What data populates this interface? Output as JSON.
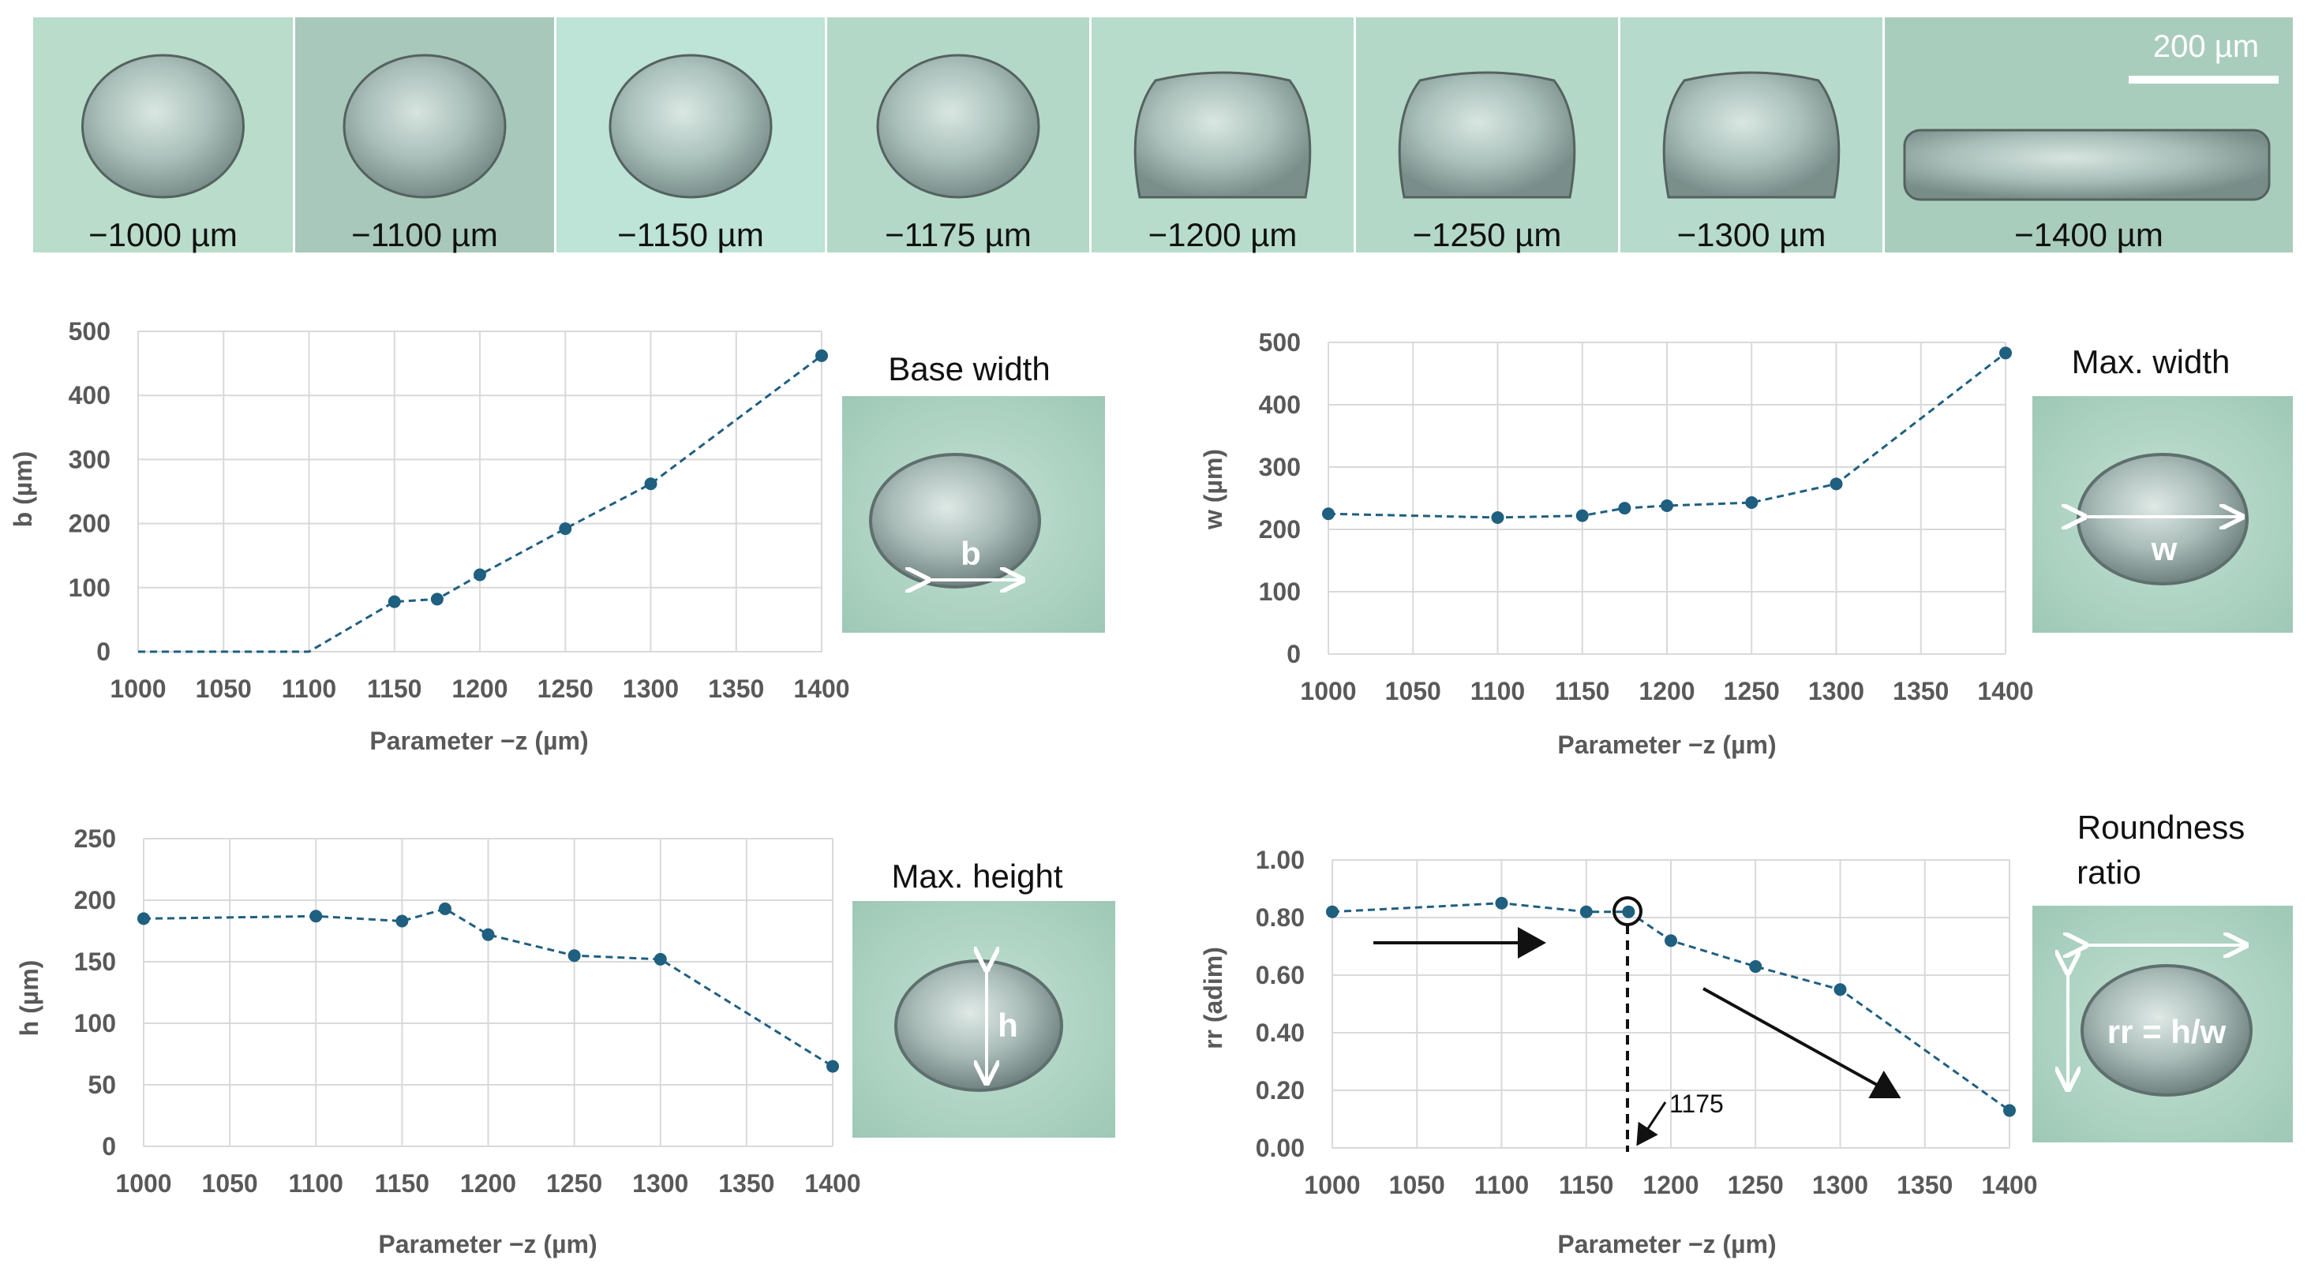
{
  "strip": {
    "scale_label": "200 µm",
    "panels": [
      {
        "label": "−1000 µm",
        "shape": "round"
      },
      {
        "label": "−1100 µm",
        "shape": "round"
      },
      {
        "label": "−1150 µm",
        "shape": "round"
      },
      {
        "label": "−1175 µm",
        "shape": "round"
      },
      {
        "label": "−1200 µm",
        "shape": "flat"
      },
      {
        "label": "−1250 µm",
        "shape": "flat"
      },
      {
        "label": "−1300 µm",
        "shape": "flat"
      },
      {
        "label": "−1400 µm",
        "shape": "strip"
      }
    ]
  },
  "insets": {
    "base": {
      "title": "Base width",
      "symbol": "b"
    },
    "width": {
      "title": "Max. width",
      "symbol": "w"
    },
    "height": {
      "title": "Max. height",
      "symbol": "h"
    },
    "round": {
      "title_line1": "Roundness",
      "title_line2": "ratio",
      "symbol": "rr = h/w"
    }
  },
  "annotation": {
    "marker_value": "1175"
  },
  "colors": {
    "series": "#1f5f80",
    "grid": "#d9d9d9",
    "axis_text": "#595959",
    "inset_bg": "#a9cdbd",
    "strip_bg": "#b8dccb"
  },
  "chart_data": [
    {
      "id": "base",
      "type": "line",
      "ylabel": "b (µm)",
      "xlabel": "Parameter −z (µm)",
      "x": [
        1000,
        1100,
        1150,
        1175,
        1200,
        1250,
        1300,
        1400
      ],
      "values": [
        0,
        0,
        78,
        82,
        120,
        192,
        262,
        462
      ],
      "markers": [
        false,
        false,
        true,
        true,
        true,
        true,
        true,
        true
      ],
      "xlim": [
        1000,
        1400
      ],
      "ylim": [
        0,
        500
      ],
      "xticks": [
        1000,
        1050,
        1100,
        1150,
        1200,
        1250,
        1300,
        1350,
        1400
      ],
      "yticks": [
        0,
        100,
        200,
        300,
        400,
        500
      ],
      "decimals": 0,
      "grid": true
    },
    {
      "id": "width",
      "type": "line",
      "ylabel": "w (µm)",
      "xlabel": "Parameter −z (µm)",
      "x": [
        1000,
        1100,
        1150,
        1175,
        1200,
        1250,
        1300,
        1400
      ],
      "values": [
        225,
        219,
        222,
        234,
        238,
        243,
        273,
        483
      ],
      "markers": [
        true,
        true,
        true,
        true,
        true,
        true,
        true,
        true
      ],
      "xlim": [
        1000,
        1400
      ],
      "ylim": [
        0,
        500
      ],
      "xticks": [
        1000,
        1050,
        1100,
        1150,
        1200,
        1250,
        1300,
        1350,
        1400
      ],
      "yticks": [
        0,
        100,
        200,
        300,
        400,
        500
      ],
      "decimals": 0,
      "grid": true
    },
    {
      "id": "height",
      "type": "line",
      "ylabel": "h (µm)",
      "xlabel": "Parameter −z (µm)",
      "x": [
        1000,
        1100,
        1150,
        1175,
        1200,
        1250,
        1300,
        1400
      ],
      "values": [
        185,
        187,
        183,
        193,
        172,
        155,
        152,
        65
      ],
      "markers": [
        true,
        true,
        true,
        true,
        true,
        true,
        true,
        true
      ],
      "xlim": [
        1000,
        1400
      ],
      "ylim": [
        0,
        250
      ],
      "xticks": [
        1000,
        1050,
        1100,
        1150,
        1200,
        1250,
        1300,
        1350,
        1400
      ],
      "yticks": [
        0,
        50,
        100,
        150,
        200,
        250
      ],
      "decimals": 0,
      "grid": true
    },
    {
      "id": "round",
      "type": "line",
      "ylabel": "rr (adim)",
      "xlabel": "Parameter −z (µm)",
      "x": [
        1000,
        1100,
        1150,
        1175,
        1200,
        1250,
        1300,
        1400
      ],
      "values": [
        0.82,
        0.85,
        0.82,
        0.82,
        0.72,
        0.63,
        0.55,
        0.13
      ],
      "markers": [
        true,
        true,
        true,
        true,
        true,
        true,
        true,
        true
      ],
      "xlim": [
        1000,
        1400
      ],
      "ylim": [
        0,
        1
      ],
      "xticks": [
        1000,
        1050,
        1100,
        1150,
        1200,
        1250,
        1300,
        1350,
        1400
      ],
      "yticks": [
        0,
        0.2,
        0.4,
        0.6,
        0.8,
        1.0
      ],
      "decimals": 2,
      "grid": true
    }
  ]
}
